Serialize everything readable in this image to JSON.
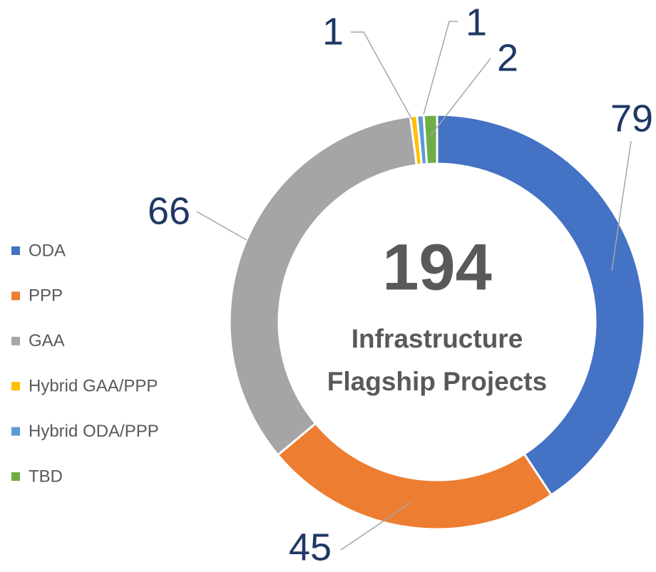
{
  "chart_data": {
    "type": "donut",
    "categories": [
      "ODA",
      "PPP",
      "GAA",
      "Hybrid GAA/PPP",
      "Hybrid ODA/PPP",
      "TBD"
    ],
    "values": [
      79,
      45,
      66,
      1,
      1,
      2
    ],
    "colors": [
      "#4472c4",
      "#ed7d31",
      "#a5a5a5",
      "#ffc000",
      "#5b9bd5",
      "#70ad47"
    ],
    "center_value": 194,
    "center_text": [
      "Infrastructure",
      "Flagship Projects"
    ],
    "legend": "left"
  }
}
